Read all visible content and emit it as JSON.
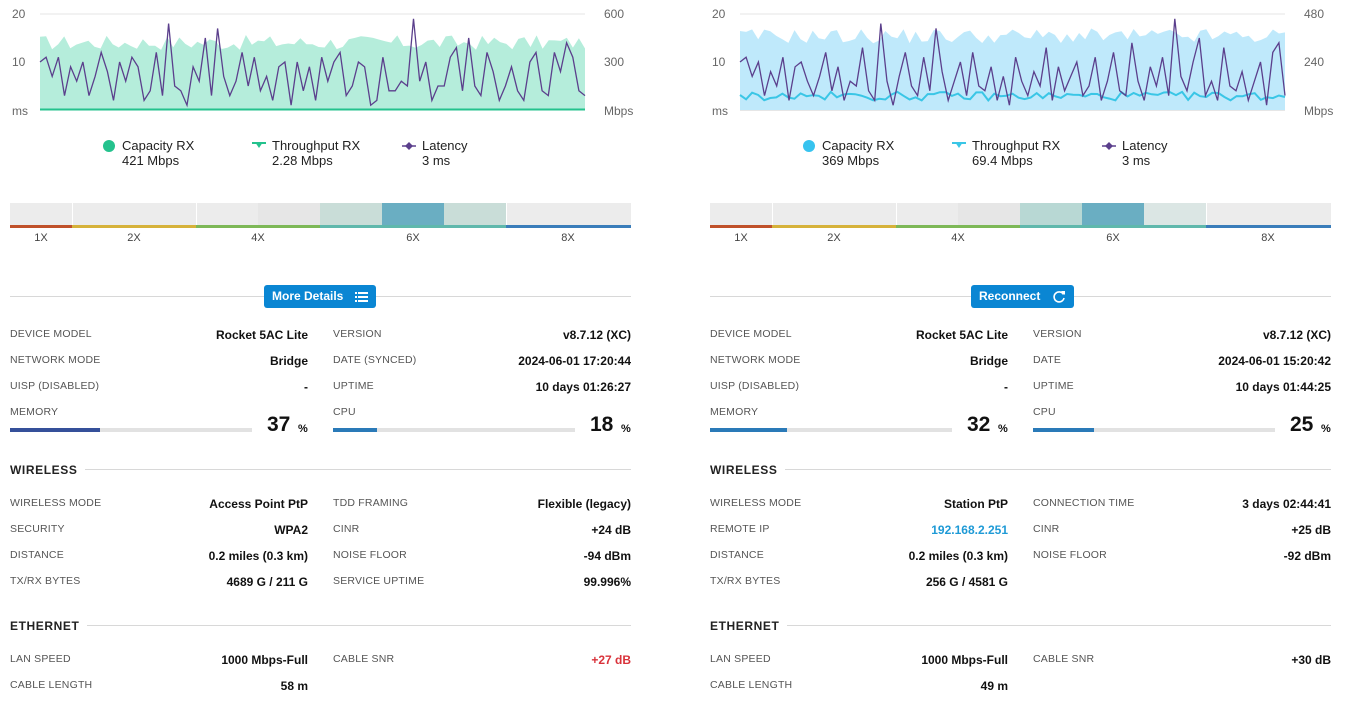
{
  "left": {
    "chart": {
      "y_left_ticks": [
        "20",
        "10",
        "ms"
      ],
      "y_right_ticks": [
        "600",
        "300",
        "Mbps"
      ],
      "capacity_color": "#3fd3a0",
      "capacity_fill": "#b5eddb",
      "throughput_color": "#24c28d",
      "latency_color": "#5b3f8c",
      "capacity_mbps": 421,
      "throughput_mbps": 2.28,
      "right_axis_max": 600,
      "left_axis_max": 20,
      "latency_series": [
        10,
        11,
        7,
        11,
        3,
        9,
        6,
        10,
        3,
        7,
        12,
        8,
        2,
        10,
        6,
        11,
        9,
        2,
        4,
        12,
        3,
        18,
        5,
        4,
        1,
        9,
        6,
        15,
        3,
        17,
        7,
        3,
        6,
        12,
        5,
        11,
        4,
        7,
        2,
        9,
        10,
        1,
        10,
        4,
        9,
        2,
        11,
        6,
        10,
        12,
        3,
        5,
        10,
        9,
        1,
        2,
        11,
        4,
        4,
        6,
        5,
        19,
        6,
        10,
        2,
        5,
        5,
        11,
        13,
        4,
        15,
        5,
        3,
        12,
        8,
        2,
        5,
        9,
        4,
        2,
        10,
        12,
        4,
        3,
        12,
        8,
        14,
        11,
        4,
        3
      ]
    },
    "legend": {
      "capacity_label": "Capacity RX",
      "capacity_value": "421 Mbps",
      "throughput_label": "Throughput RX",
      "throughput_value": "2.28 Mbps",
      "latency_label": "Latency",
      "latency_value": "3 ms"
    },
    "modulation": {
      "labels": [
        "1X",
        "2X",
        "4X",
        "6X",
        "8X"
      ],
      "active_label": "6X"
    },
    "button": {
      "label": "More Details",
      "icon": "list-icon"
    },
    "device": {
      "device_model_key": "DEVICE MODEL",
      "device_model": "Rocket 5AC Lite",
      "network_mode_key": "NETWORK MODE",
      "network_mode": "Bridge",
      "uisp_key": "UISP (DISABLED)",
      "uisp": "-",
      "version_key": "VERSION",
      "version": "v8.7.12 (XC)",
      "date_key": "DATE (SYNCED)",
      "date": "2024-06-01 17:20:44",
      "uptime_key": "UPTIME",
      "uptime": "10 days 01:26:27",
      "memory_key": "MEMORY",
      "memory": "37",
      "memory_pct": 37,
      "cpu_key": "CPU",
      "cpu": "18",
      "cpu_pct": 18,
      "pct_unit": "%",
      "memory_color": "#35509a",
      "cpu_color": "#2a7ab8"
    },
    "wireless": {
      "title": "WIRELESS",
      "mode_key": "WIRELESS MODE",
      "mode": "Access Point PtP",
      "security_key": "SECURITY",
      "security": "WPA2",
      "distance_key": "DISTANCE",
      "distance": "0.2 miles (0.3 km)",
      "txrx_key": "TX/RX BYTES",
      "txrx": "4689 G / 211 G",
      "tdd_key": "TDD FRAMING",
      "tdd": "Flexible (legacy)",
      "cinr_key": "CINR",
      "cinr": "+24 dB",
      "noise_key": "NOISE FLOOR",
      "noise": "-94 dBm",
      "service_uptime_key": "SERVICE UPTIME",
      "service_uptime": "99.996%"
    },
    "ethernet": {
      "title": "ETHERNET",
      "lan_speed_key": "LAN SPEED",
      "lan_speed": "1000 Mbps-Full",
      "cable_length_key": "CABLE LENGTH",
      "cable_length": "58 m",
      "cable_snr_key": "CABLE SNR",
      "cable_snr": "+27 dB",
      "cable_snr_color": "#d9323a"
    }
  },
  "right": {
    "chart": {
      "y_left_ticks": [
        "20",
        "10",
        "ms"
      ],
      "y_right_ticks": [
        "480",
        "240",
        "Mbps"
      ],
      "capacity_color": "#37c3ef",
      "capacity_fill": "#bfe9fb",
      "throughput_color": "#3ac6e6",
      "latency_color": "#5b3f8c",
      "capacity_mbps": 369,
      "throughput_mbps": 69.4,
      "right_axis_max": 480,
      "left_axis_max": 20,
      "latency_series": [
        10,
        11,
        7,
        10,
        3,
        8,
        5,
        11,
        2,
        9,
        10,
        6,
        3,
        7,
        12,
        4,
        9,
        2,
        6,
        5,
        13,
        4,
        2,
        18,
        6,
        1,
        7,
        12,
        5,
        3,
        11,
        4,
        17,
        8,
        2,
        6,
        10,
        3,
        12,
        5,
        4,
        9,
        2,
        7,
        1,
        11,
        6,
        3,
        8,
        5,
        13,
        2,
        9,
        4,
        7,
        10,
        3,
        5,
        11,
        2,
        6,
        12,
        4,
        3,
        14,
        6,
        2,
        9,
        5,
        11,
        3,
        19,
        7,
        4,
        10,
        15,
        3,
        6,
        2,
        13,
        5,
        4,
        8,
        2,
        6,
        10,
        1,
        12,
        14,
        3
      ]
    },
    "legend": {
      "capacity_label": "Capacity RX",
      "capacity_value": "369 Mbps",
      "throughput_label": "Throughput RX",
      "throughput_value": "69.4 Mbps",
      "latency_label": "Latency",
      "latency_value": "3 ms"
    },
    "modulation": {
      "labels": [
        "1X",
        "2X",
        "4X",
        "6X",
        "8X"
      ],
      "active_label": "6X"
    },
    "button": {
      "label": "Reconnect",
      "icon": "refresh-icon"
    },
    "device": {
      "device_model_key": "DEVICE MODEL",
      "device_model": "Rocket 5AC Lite",
      "network_mode_key": "NETWORK MODE",
      "network_mode": "Bridge",
      "uisp_key": "UISP (DISABLED)",
      "uisp": "-",
      "version_key": "VERSION",
      "version": "v8.7.12 (XC)",
      "date_key": "DATE",
      "date": "2024-06-01 15:20:42",
      "uptime_key": "UPTIME",
      "uptime": "10 days 01:44:25",
      "memory_key": "MEMORY",
      "memory": "32",
      "memory_pct": 32,
      "cpu_key": "CPU",
      "cpu": "25",
      "cpu_pct": 25,
      "pct_unit": "%",
      "memory_color": "#2a7ab8",
      "cpu_color": "#2a7ab8"
    },
    "wireless": {
      "title": "WIRELESS",
      "mode_key": "WIRELESS MODE",
      "mode": "Station PtP",
      "remote_ip_key": "REMOTE IP",
      "remote_ip": "192.168.2.251",
      "distance_key": "DISTANCE",
      "distance": "0.2 miles (0.3 km)",
      "txrx_key": "TX/RX BYTES",
      "txrx": "256 G / 4581 G",
      "conn_time_key": "CONNECTION TIME",
      "conn_time": "3 days 02:44:41",
      "cinr_key": "CINR",
      "cinr": "+25 dB",
      "noise_key": "NOISE FLOOR",
      "noise": "-92 dBm"
    },
    "ethernet": {
      "title": "ETHERNET",
      "lan_speed_key": "LAN SPEED",
      "lan_speed": "1000 Mbps-Full",
      "cable_length_key": "CABLE LENGTH",
      "cable_length": "49 m",
      "cable_snr_key": "CABLE SNR",
      "cable_snr": "+30 dB"
    }
  }
}
